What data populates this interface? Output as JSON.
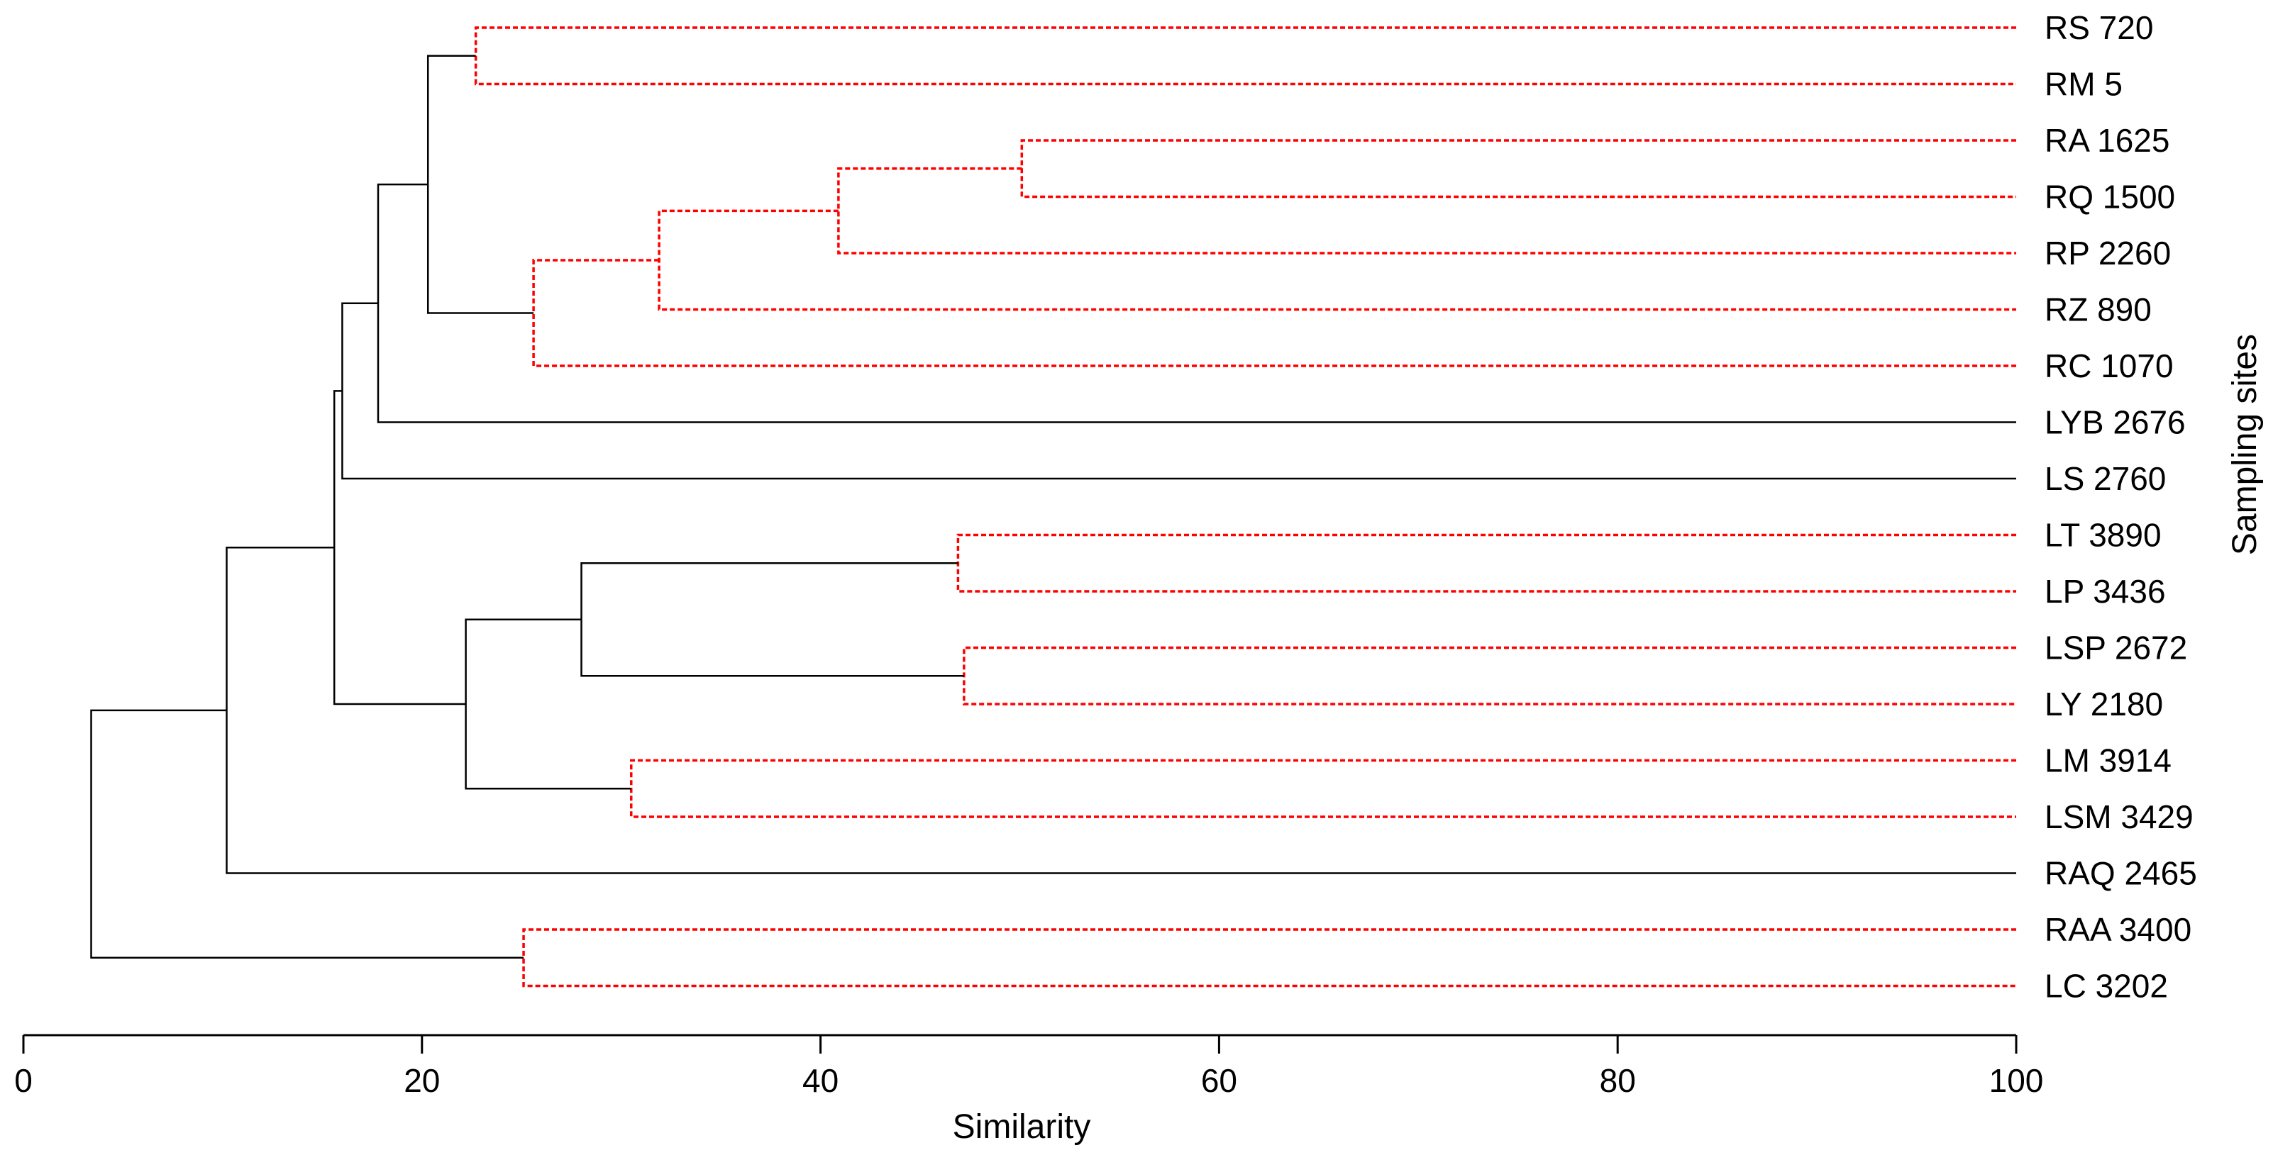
{
  "chart_data": {
    "type": "dendrogram",
    "orientation": "horizontal",
    "xlabel": "Similarity",
    "ylabel": "Sampling sites",
    "xlim": [
      0,
      100
    ],
    "ticks": [
      0,
      20,
      40,
      60,
      80,
      100
    ],
    "tick_labels": [
      "0",
      "20",
      "40",
      "60",
      "80",
      "100"
    ],
    "colors": {
      "significant": "#ff0000",
      "normal": "#000000"
    },
    "leaves": [
      "RS 720",
      "RM 5",
      "RA 1625",
      "RQ 1500",
      "RP 2260",
      "RZ 890",
      "RC 1070",
      "LYB 2676",
      "LS 2760",
      "LT 3890",
      "LP 3436",
      "LSP 2672",
      "LY 2180",
      "LM 3914",
      "LSM 3429",
      "RAQ 2465",
      "RAA 3400",
      "LC 3202"
    ],
    "merges": [
      {
        "id": "m1",
        "children": [
          "RS 720",
          "RM 5"
        ],
        "height": 22.7,
        "style": "dashed-red"
      },
      {
        "id": "m2",
        "children": [
          "RA 1625",
          "RQ 1500"
        ],
        "height": 50.1,
        "style": "dashed-red"
      },
      {
        "id": "m3",
        "children": [
          "m2",
          "RP 2260"
        ],
        "height": 40.9,
        "style": "dashed-red"
      },
      {
        "id": "m4",
        "children": [
          "m3",
          "RZ 890"
        ],
        "height": 31.9,
        "style": "dashed-red"
      },
      {
        "id": "m5",
        "children": [
          "m4",
          "RC 1070"
        ],
        "height": 25.6,
        "style": "dashed-red"
      },
      {
        "id": "m6",
        "children": [
          "m1",
          "m5"
        ],
        "height": 20.3,
        "style": "solid-black"
      },
      {
        "id": "m7",
        "children": [
          "m6",
          "LYB 2676"
        ],
        "height": 17.8,
        "style": "solid-black"
      },
      {
        "id": "m8",
        "children": [
          "m7",
          "LS 2760"
        ],
        "height": 16.0,
        "style": "solid-black"
      },
      {
        "id": "m9",
        "children": [
          "LT 3890",
          "LP 3436"
        ],
        "height": 46.9,
        "style": "dashed-red"
      },
      {
        "id": "m10",
        "children": [
          "LSP 2672",
          "LY 2180"
        ],
        "height": 47.2,
        "style": "dashed-red"
      },
      {
        "id": "m11",
        "children": [
          "m9",
          "m10"
        ],
        "height": 28.0,
        "style": "solid-black"
      },
      {
        "id": "m12",
        "children": [
          "LM 3914",
          "LSM 3429"
        ],
        "height": 30.5,
        "style": "dashed-red"
      },
      {
        "id": "m13",
        "children": [
          "m11",
          "m12"
        ],
        "height": 22.2,
        "style": "solid-black"
      },
      {
        "id": "m14",
        "children": [
          "m8",
          "m13"
        ],
        "height": 15.6,
        "style": "solid-black"
      },
      {
        "id": "m15",
        "children": [
          "m14",
          "RAQ 2465"
        ],
        "height": 10.2,
        "style": "solid-black"
      },
      {
        "id": "m16",
        "children": [
          "RAA 3400",
          "LC 3202"
        ],
        "height": 25.1,
        "style": "dashed-red"
      },
      {
        "id": "m17",
        "children": [
          "m15",
          "m16"
        ],
        "height": 3.4,
        "style": "solid-black"
      }
    ]
  }
}
